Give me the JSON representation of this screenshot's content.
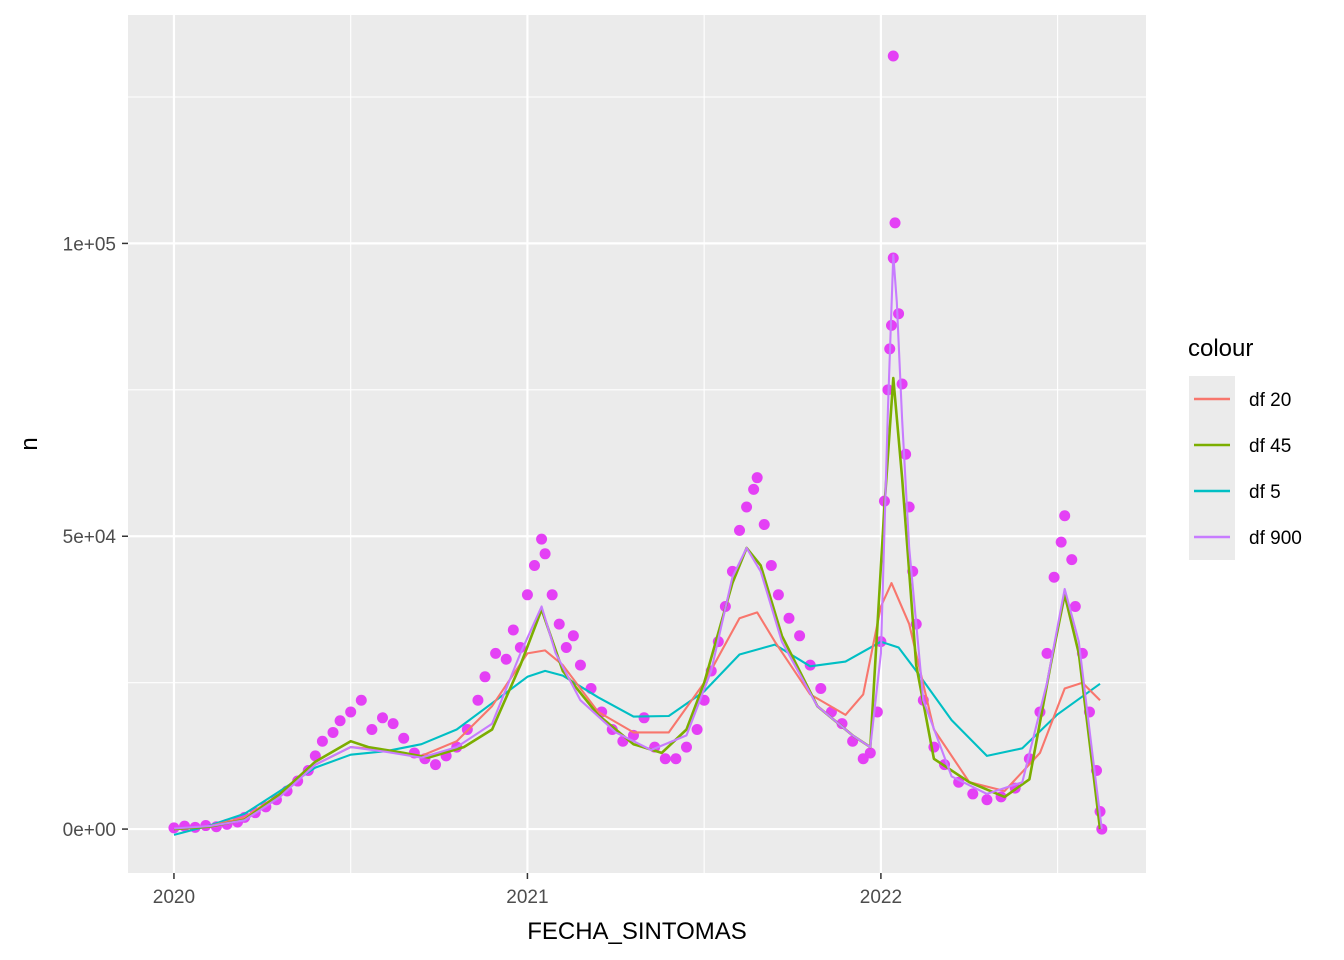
{
  "chart_data": {
    "type": "scatter",
    "xlabel": "FECHA_SINTOMAS",
    "ylabel": "n",
    "x_ticks": [
      2020,
      2021,
      2022
    ],
    "x_tick_labels": [
      "2020",
      "2021",
      "2022"
    ],
    "xlim": [
      2019.87,
      2022.75
    ],
    "y_ticks": [
      0,
      50000,
      100000
    ],
    "y_tick_labels": [
      "0e+00",
      "5e+04",
      "1e+05"
    ],
    "ylim": [
      -7500,
      139000
    ],
    "grid": true,
    "legend": {
      "title": "colour",
      "position": "right",
      "entries": [
        "df 20",
        "df 45",
        "df 5",
        "df 900"
      ]
    },
    "colors": {
      "panel_bg": "#ebebeb",
      "points": "#e440f5",
      "df 20": "#f8766d",
      "df 45": "#7cae00",
      "df 5": "#00bfc4",
      "df 900": "#c77cff"
    },
    "points": [
      [
        2020.0,
        200
      ],
      [
        2020.03,
        500
      ],
      [
        2020.06,
        300
      ],
      [
        2020.09,
        600
      ],
      [
        2020.12,
        400
      ],
      [
        2020.15,
        800
      ],
      [
        2020.18,
        1200
      ],
      [
        2020.2,
        2000
      ],
      [
        2020.23,
        2800
      ],
      [
        2020.26,
        3800
      ],
      [
        2020.29,
        5000
      ],
      [
        2020.32,
        6500
      ],
      [
        2020.35,
        8200
      ],
      [
        2020.38,
        10000
      ],
      [
        2020.4,
        12500
      ],
      [
        2020.42,
        15000
      ],
      [
        2020.45,
        16500
      ],
      [
        2020.47,
        18500
      ],
      [
        2020.5,
        20000
      ],
      [
        2020.53,
        22000
      ],
      [
        2020.56,
        17000
      ],
      [
        2020.59,
        19000
      ],
      [
        2020.62,
        18000
      ],
      [
        2020.65,
        15500
      ],
      [
        2020.68,
        13000
      ],
      [
        2020.71,
        12000
      ],
      [
        2020.74,
        11000
      ],
      [
        2020.77,
        12500
      ],
      [
        2020.8,
        14000
      ],
      [
        2020.83,
        17000
      ],
      [
        2020.86,
        22000
      ],
      [
        2020.88,
        26000
      ],
      [
        2020.91,
        30000
      ],
      [
        2020.94,
        29000
      ],
      [
        2020.96,
        34000
      ],
      [
        2020.98,
        31000
      ],
      [
        2021.0,
        40000
      ],
      [
        2021.02,
        45000
      ],
      [
        2021.04,
        49500
      ],
      [
        2021.05,
        47000
      ],
      [
        2021.07,
        40000
      ],
      [
        2021.09,
        35000
      ],
      [
        2021.11,
        31000
      ],
      [
        2021.13,
        33000
      ],
      [
        2021.15,
        28000
      ],
      [
        2021.18,
        24000
      ],
      [
        2021.21,
        20000
      ],
      [
        2021.24,
        17000
      ],
      [
        2021.27,
        15000
      ],
      [
        2021.3,
        16000
      ],
      [
        2021.33,
        19000
      ],
      [
        2021.36,
        14000
      ],
      [
        2021.39,
        12000
      ],
      [
        2021.42,
        12000
      ],
      [
        2021.45,
        14000
      ],
      [
        2021.48,
        17000
      ],
      [
        2021.5,
        22000
      ],
      [
        2021.52,
        27000
      ],
      [
        2021.54,
        32000
      ],
      [
        2021.56,
        38000
      ],
      [
        2021.58,
        44000
      ],
      [
        2021.6,
        51000
      ],
      [
        2021.62,
        55000
      ],
      [
        2021.64,
        58000
      ],
      [
        2021.65,
        60000
      ],
      [
        2021.67,
        52000
      ],
      [
        2021.69,
        45000
      ],
      [
        2021.71,
        40000
      ],
      [
        2021.74,
        36000
      ],
      [
        2021.77,
        33000
      ],
      [
        2021.8,
        28000
      ],
      [
        2021.83,
        24000
      ],
      [
        2021.86,
        20000
      ],
      [
        2021.89,
        18000
      ],
      [
        2021.92,
        15000
      ],
      [
        2021.95,
        12000
      ],
      [
        2021.97,
        13000
      ],
      [
        2021.99,
        20000
      ],
      [
        2022.0,
        32000
      ],
      [
        2022.01,
        56000
      ],
      [
        2022.02,
        75000
      ],
      [
        2022.025,
        82000
      ],
      [
        2022.03,
        86000
      ],
      [
        2022.035,
        97500
      ],
      [
        2022.04,
        103500
      ],
      [
        2022.05,
        88000
      ],
      [
        2022.06,
        76000
      ],
      [
        2022.07,
        64000
      ],
      [
        2022.08,
        55000
      ],
      [
        2022.09,
        44000
      ],
      [
        2022.1,
        35000
      ],
      [
        2022.12,
        22000
      ],
      [
        2022.15,
        14000
      ],
      [
        2022.18,
        11000
      ],
      [
        2022.22,
        8000
      ],
      [
        2022.26,
        6000
      ],
      [
        2022.3,
        5000
      ],
      [
        2022.34,
        5500
      ],
      [
        2022.38,
        7000
      ],
      [
        2022.42,
        12000
      ],
      [
        2022.45,
        20000
      ],
      [
        2022.47,
        30000
      ],
      [
        2022.49,
        43000
      ],
      [
        2022.51,
        49000
      ],
      [
        2022.52,
        53500
      ],
      [
        2022.54,
        46000
      ],
      [
        2022.55,
        38000
      ],
      [
        2022.57,
        30000
      ],
      [
        2022.59,
        20000
      ],
      [
        2022.61,
        10000
      ],
      [
        2022.62,
        3000
      ],
      [
        2022.625,
        0
      ],
      [
        2022.035,
        132000
      ]
    ],
    "series": [
      {
        "name": "df 5",
        "x": [
          2020.0,
          2020.1,
          2020.2,
          2020.3,
          2020.4,
          2020.5,
          2020.6,
          2020.7,
          2020.8,
          2020.9,
          2021.0,
          2021.05,
          2021.1,
          2021.2,
          2021.3,
          2021.4,
          2021.5,
          2021.6,
          2021.7,
          2021.8,
          2021.9,
          2022.0,
          2022.05,
          2022.1,
          2022.2,
          2022.3,
          2022.4,
          2022.5,
          2022.62
        ],
        "values": [
          -1000,
          600,
          2600,
          6500,
          10500,
          12700,
          13300,
          14500,
          17000,
          21500,
          26000,
          27000,
          26200,
          22500,
          19200,
          19300,
          23500,
          29800,
          31500,
          27800,
          28600,
          32000,
          31000,
          27000,
          18600,
          12500,
          13800,
          19600,
          24800
        ]
      },
      {
        "name": "df 20",
        "x": [
          2020.0,
          2020.1,
          2020.2,
          2020.3,
          2020.4,
          2020.5,
          2020.6,
          2020.7,
          2020.8,
          2020.9,
          2021.0,
          2021.05,
          2021.1,
          2021.2,
          2021.3,
          2021.4,
          2021.5,
          2021.6,
          2021.65,
          2021.7,
          2021.8,
          2021.9,
          2021.95,
          2022.0,
          2022.03,
          2022.08,
          2022.15,
          2022.25,
          2022.35,
          2022.45,
          2022.52,
          2022.57,
          2022.62
        ],
        "values": [
          0,
          500,
          2000,
          6000,
          11000,
          14000,
          13500,
          12500,
          15000,
          21000,
          30000,
          30500,
          28000,
          20000,
          16500,
          16500,
          25000,
          36000,
          37000,
          32000,
          23000,
          19500,
          23000,
          38000,
          42000,
          35000,
          17000,
          8000,
          6500,
          13000,
          24000,
          25000,
          22000
        ]
      },
      {
        "name": "df 45",
        "x": [
          2020.0,
          2020.1,
          2020.2,
          2020.3,
          2020.4,
          2020.5,
          2020.55,
          2020.65,
          2020.72,
          2020.82,
          2020.9,
          2020.98,
          2021.04,
          2021.1,
          2021.2,
          2021.3,
          2021.38,
          2021.45,
          2021.5,
          2021.58,
          2021.62,
          2021.66,
          2021.72,
          2021.82,
          2021.92,
          2021.97,
          2022.01,
          2022.035,
          2022.06,
          2022.1,
          2022.15,
          2022.25,
          2022.35,
          2022.42,
          2022.48,
          2022.52,
          2022.56,
          2022.6,
          2022.62
        ],
        "values": [
          0,
          400,
          1600,
          6000,
          11500,
          15000,
          14000,
          13000,
          12200,
          14000,
          17000,
          28000,
          37500,
          27000,
          19500,
          14500,
          13000,
          17000,
          25000,
          42000,
          48000,
          45000,
          33000,
          21000,
          16000,
          14000,
          55000,
          77000,
          60000,
          28000,
          12000,
          8000,
          5500,
          8500,
          28000,
          40000,
          30000,
          10000,
          0
        ]
      },
      {
        "name": "df 900",
        "x": [
          2020.0,
          2020.1,
          2020.2,
          2020.3,
          2020.4,
          2020.5,
          2020.6,
          2020.7,
          2020.8,
          2020.9,
          2020.98,
          2021.04,
          2021.08,
          2021.15,
          2021.25,
          2021.35,
          2021.45,
          2021.52,
          2021.58,
          2021.62,
          2021.66,
          2021.72,
          2021.82,
          2021.92,
          2021.97,
          2022.0,
          2022.02,
          2022.035,
          2022.045,
          2022.06,
          2022.08,
          2022.12,
          2022.2,
          2022.3,
          2022.4,
          2022.47,
          2022.52,
          2022.56,
          2022.6,
          2022.625
        ],
        "values": [
          100,
          500,
          1500,
          5500,
          11000,
          14000,
          13200,
          12200,
          14000,
          18000,
          30000,
          38000,
          30000,
          22000,
          16500,
          13500,
          16000,
          27000,
          43000,
          48000,
          44000,
          32000,
          21000,
          16000,
          14000,
          30000,
          72000,
          98000,
          90000,
          70000,
          48000,
          22000,
          9000,
          6000,
          8000,
          25000,
          41000,
          32000,
          12000,
          0
        ]
      }
    ]
  }
}
